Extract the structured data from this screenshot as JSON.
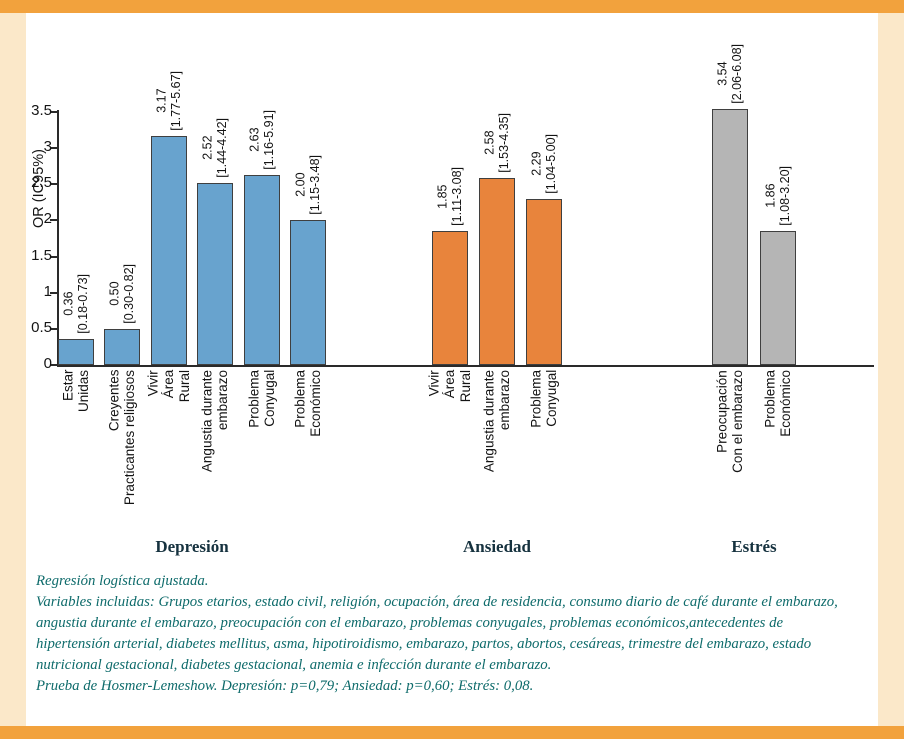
{
  "palette": {
    "background": "#fbe8c9",
    "strip": "#f2a23d",
    "footer_text": "#0e6b6b",
    "group_label_text": "#16323f",
    "depression_bar": "#68a3ce",
    "anxiety_bar": "#e8843c",
    "stress_bar": "#b5b5b5"
  },
  "chart_data": {
    "type": "bar",
    "title": "",
    "ylabel": "OR (IC95%)",
    "xlabel": "",
    "ylim": [
      0,
      3.5
    ],
    "grid": false,
    "yticks": [
      0,
      0.5,
      1,
      1.5,
      2,
      2.5,
      3,
      3.5
    ],
    "ytick_labels": [
      "0",
      "0.5",
      "1",
      "1.5",
      "2",
      "2.5",
      "3",
      "3.5"
    ],
    "groups": [
      {
        "name": "Depresión",
        "color": "#68a3ce",
        "bars": [
          {
            "category_lines": [
              "Estar",
              "Unidas"
            ],
            "value": 0.36,
            "value_label": "0.36",
            "ci": "[0.18-0.73]"
          },
          {
            "category_lines": [
              "Creyentes",
              "Practicantes religiosos"
            ],
            "value": 0.5,
            "value_label": "0.50",
            "ci": "[0.30-0.82]"
          },
          {
            "category_lines": [
              "Vivir",
              "Área",
              "Rural"
            ],
            "value": 3.17,
            "value_label": "3.17",
            "ci": "[1.77-5.67]"
          },
          {
            "category_lines": [
              "Angustia durante",
              "embarazo"
            ],
            "value": 2.52,
            "value_label": "2.52",
            "ci": "[1.44-4.42]"
          },
          {
            "category_lines": [
              "Problema",
              "Conyugal"
            ],
            "value": 2.63,
            "value_label": "2.63",
            "ci": "[1.16-5.91]"
          },
          {
            "category_lines": [
              "Problema",
              "Económico"
            ],
            "value": 2.0,
            "value_label": "2.00",
            "ci": "[1.15-3.48]"
          }
        ]
      },
      {
        "name": "Ansiedad",
        "color": "#e8843c",
        "bars": [
          {
            "category_lines": [
              "Vivir",
              "Área",
              "Rural"
            ],
            "value": 1.85,
            "value_label": "1.85",
            "ci": "[1.11-3.08]"
          },
          {
            "category_lines": [
              "Angustia durante",
              "embarazo"
            ],
            "value": 2.58,
            "value_label": "2.58",
            "ci": "[1.53-4.35]"
          },
          {
            "category_lines": [
              "Problema",
              "Conyugal"
            ],
            "value": 2.29,
            "value_label": "2.29",
            "ci": "[1.04-5.00]"
          }
        ]
      },
      {
        "name": "Estrés",
        "color": "#b5b5b5",
        "bars": [
          {
            "category_lines": [
              "Preocupación",
              "Con el embarazo"
            ],
            "value": 3.54,
            "value_label": "3.54",
            "ci": "[2.06-6.08]"
          },
          {
            "category_lines": [
              "Problema",
              "Económico"
            ],
            "value": 1.86,
            "value_label": "1.86",
            "ci": "[1.08-3.20]"
          }
        ]
      }
    ]
  },
  "footnotes": {
    "line1": "Regresión logística ajustada.",
    "variables": "Variables incluidas: Grupos etarios, estado civil, religión, ocupación, área de residencia, consumo diario de café durante el embarazo, angustia durante el embarazo, preocupación con el embarazo, problemas conyugales, problemas económicos,antecedentes de hipertensión arterial, diabetes mellitus, asma, hipotiroidismo, embarazo, partos, abortos, cesáreas, trimestre del embarazo, estado nutricional gestacional, diabetes gestacional, anemia e infección durante el embarazo.",
    "hosmer": "Prueba de Hosmer-Lemeshow. Depresión: p=0,79; Ansiedad: p=0,60; Estrés: 0,08."
  }
}
